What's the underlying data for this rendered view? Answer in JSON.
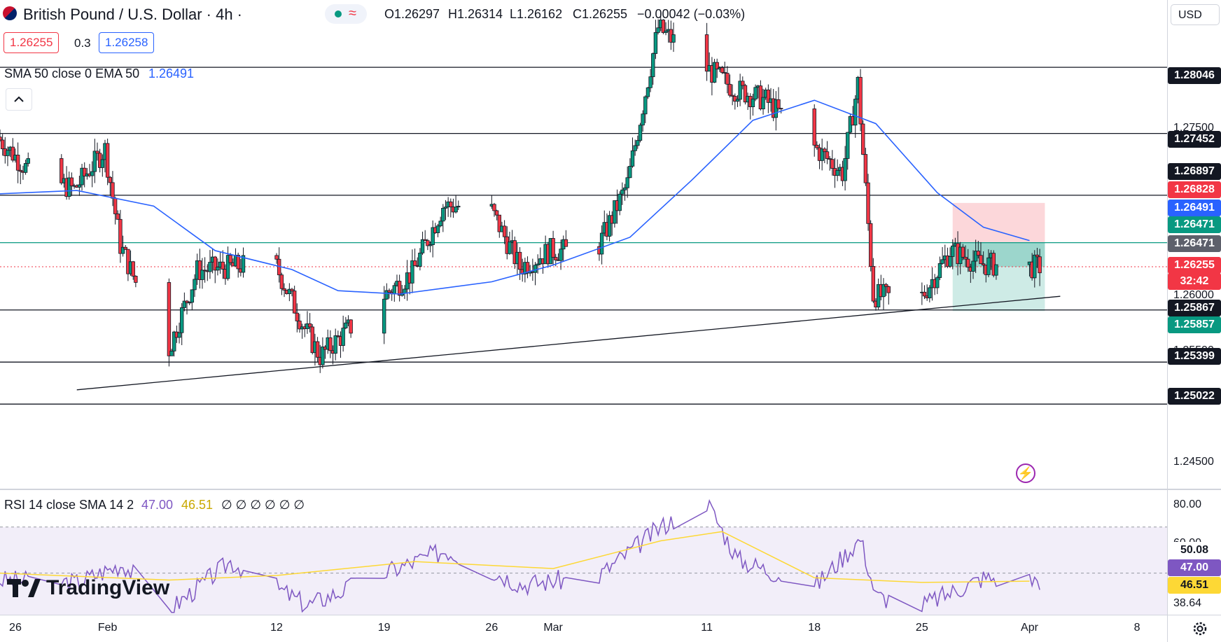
{
  "header": {
    "symbol": "British Pound / U.S. Dollar · 4h ·",
    "ohlc_o": "O1.26297",
    "ohlc_h": "H1.26314",
    "ohlc_l": "L1.26162",
    "ohlc_c": "C1.26255",
    "ohlc_change": "−0.00042 (−0.03%)",
    "sell_price": "1.26255",
    "spread": "0.3",
    "buy_price": "1.26258",
    "ma_label": "SMA 50 close 0 EMA 50",
    "ma_value": "1.26491",
    "currency": "USD",
    "collapse_icon": "chevron-up-icon"
  },
  "rsi": {
    "label": "RSI 14 close SMA 14 2",
    "rsi_value": "47.00",
    "sma_value": "46.51",
    "empty_values": "∅ ∅ ∅ ∅ ∅ ∅"
  },
  "price_axis": {
    "ticks": [
      "1.24500",
      "1.25500",
      "1.26000",
      "1.27500"
    ],
    "tags": [
      {
        "label": "1.28046",
        "bg": "#131722"
      },
      {
        "label": "1.27452",
        "bg": "#131722"
      },
      {
        "label": "1.26897",
        "bg": "#131722"
      },
      {
        "label": "1.26828",
        "bg": "#f23645"
      },
      {
        "label": "1.26491",
        "bg": "#2962ff"
      },
      {
        "label": "1.26471",
        "bg": "#089981"
      },
      {
        "label": "1.26471",
        "bg": "#5d606b"
      },
      {
        "label": "1.26255",
        "bg": "#f23645"
      },
      {
        "label": "32:42",
        "bg": "#f23645"
      },
      {
        "label": "1.25867",
        "bg": "#131722"
      },
      {
        "label": "1.25857",
        "bg": "#089981"
      },
      {
        "label": "1.25399",
        "bg": "#131722"
      },
      {
        "label": "1.25022",
        "bg": "#131722"
      }
    ]
  },
  "rsi_axis": {
    "ticks": [
      "80.00",
      "60.00",
      "38.64"
    ],
    "tags": [
      {
        "label": "50.08",
        "bg": "#ffffff",
        "fg": "#131722"
      },
      {
        "label": "47.00",
        "bg": "#7e57c2",
        "fg": "#ffffff"
      },
      {
        "label": "46.51",
        "bg": "#fdd835",
        "fg": "#131722"
      }
    ]
  },
  "time_axis": {
    "labels": [
      "26",
      "Feb",
      "12",
      "19",
      "26",
      "Mar",
      "11",
      "18",
      "25",
      "Apr",
      "8"
    ]
  },
  "watermark": "TradingView",
  "colors": {
    "up": "#089981",
    "down": "#f23645",
    "ema": "#2962ff",
    "rsi": "#7e57c2",
    "rsi_sma": "#fdd835",
    "candle": "#131722"
  },
  "chart_data": [
    {
      "type": "candlestick",
      "title": "British Pound / U.S. Dollar · 4h",
      "x_range": [
        "2024-01-25",
        "2024-04-10"
      ],
      "y_range": [
        1.2425,
        1.2865
      ],
      "horizontal_levels": [
        1.28046,
        1.27452,
        1.26897,
        1.26471,
        1.25867,
        1.25399,
        1.25022
      ],
      "trendline": {
        "from": {
          "date": "2024-01-30",
          "price": 1.2515
        },
        "to": {
          "date": "2024-04-03",
          "price": 1.2599
        }
      },
      "position_tool": {
        "entry": 1.26471,
        "stop": 1.26828,
        "target": 1.25857,
        "from": "2024-03-27",
        "to": "2024-04-02"
      },
      "current_price": 1.26255,
      "countdown": "32:42",
      "ema50": [
        {
          "date": "2024-01-25",
          "value": 1.2691
        },
        {
          "date": "2024-01-30",
          "value": 1.2694
        },
        {
          "date": "2024-02-04",
          "value": 1.268
        },
        {
          "date": "2024-02-08",
          "value": 1.264
        },
        {
          "date": "2024-02-13",
          "value": 1.2623
        },
        {
          "date": "2024-02-16",
          "value": 1.2604
        },
        {
          "date": "2024-02-20",
          "value": 1.2601
        },
        {
          "date": "2024-02-26",
          "value": 1.2612
        },
        {
          "date": "2024-03-01",
          "value": 1.2627
        },
        {
          "date": "2024-03-06",
          "value": 1.2652
        },
        {
          "date": "2024-03-10",
          "value": 1.2703
        },
        {
          "date": "2024-03-14",
          "value": 1.2757
        },
        {
          "date": "2024-03-18",
          "value": 1.2775
        },
        {
          "date": "2024-03-22",
          "value": 1.2754
        },
        {
          "date": "2024-03-26",
          "value": 1.2692
        },
        {
          "date": "2024-03-29",
          "value": 1.2661
        },
        {
          "date": "2024-04-01",
          "value": 1.2649
        }
      ],
      "closes": [
        {
          "date": "2024-01-25",
          "value": 1.2742
        },
        {
          "date": "2024-01-27",
          "value": 1.2712
        },
        {
          "date": "2024-01-30",
          "value": 1.2695
        },
        {
          "date": "2024-02-01",
          "value": 1.2731
        },
        {
          "date": "2024-02-02",
          "value": 1.2645
        },
        {
          "date": "2024-02-05",
          "value": 1.2545
        },
        {
          "date": "2024-02-07",
          "value": 1.2622
        },
        {
          "date": "2024-02-09",
          "value": 1.2625
        },
        {
          "date": "2024-02-12",
          "value": 1.263
        },
        {
          "date": "2024-02-14",
          "value": 1.257
        },
        {
          "date": "2024-02-15",
          "value": 1.2545
        },
        {
          "date": "2024-02-19",
          "value": 1.2598
        },
        {
          "date": "2024-02-21",
          "value": 1.262
        },
        {
          "date": "2024-02-23",
          "value": 1.268
        },
        {
          "date": "2024-02-26",
          "value": 1.268
        },
        {
          "date": "2024-02-28",
          "value": 1.2625
        },
        {
          "date": "2024-03-01",
          "value": 1.264
        },
        {
          "date": "2024-03-04",
          "value": 1.264
        },
        {
          "date": "2024-03-06",
          "value": 1.27
        },
        {
          "date": "2024-03-08",
          "value": 1.284
        },
        {
          "date": "2024-03-11",
          "value": 1.2805
        },
        {
          "date": "2024-03-13",
          "value": 1.2785
        },
        {
          "date": "2024-03-15",
          "value": 1.2775
        },
        {
          "date": "2024-03-18",
          "value": 1.2735
        },
        {
          "date": "2024-03-20",
          "value": 1.271
        },
        {
          "date": "2024-03-21",
          "value": 1.279
        },
        {
          "date": "2024-03-22",
          "value": 1.26
        },
        {
          "date": "2024-03-25",
          "value": 1.2595
        },
        {
          "date": "2024-03-27",
          "value": 1.264
        },
        {
          "date": "2024-03-29",
          "value": 1.2628
        },
        {
          "date": "2024-04-01",
          "value": 1.26255
        }
      ],
      "rsi_y_range": [
        32,
        86
      ],
      "rsi_levels": [
        70,
        50,
        30
      ],
      "rsi14": [
        {
          "date": "2024-01-25",
          "value": 47
        },
        {
          "date": "2024-01-30",
          "value": 46
        },
        {
          "date": "2024-02-02",
          "value": 54
        },
        {
          "date": "2024-02-05",
          "value": 34
        },
        {
          "date": "2024-02-09",
          "value": 55
        },
        {
          "date": "2024-02-14",
          "value": 36
        },
        {
          "date": "2024-02-19",
          "value": 50
        },
        {
          "date": "2024-02-23",
          "value": 60
        },
        {
          "date": "2024-02-28",
          "value": 45
        },
        {
          "date": "2024-03-04",
          "value": 49
        },
        {
          "date": "2024-03-08",
          "value": 70
        },
        {
          "date": "2024-03-11",
          "value": 81
        },
        {
          "date": "2024-03-13",
          "value": 56
        },
        {
          "date": "2024-03-18",
          "value": 44
        },
        {
          "date": "2024-03-21",
          "value": 65
        },
        {
          "date": "2024-03-22",
          "value": 40
        },
        {
          "date": "2024-03-25",
          "value": 36
        },
        {
          "date": "2024-03-29",
          "value": 48
        },
        {
          "date": "2024-04-01",
          "value": 47
        }
      ],
      "rsi_sma14": [
        {
          "date": "2024-01-25",
          "value": 50
        },
        {
          "date": "2024-02-05",
          "value": 47
        },
        {
          "date": "2024-02-12",
          "value": 49
        },
        {
          "date": "2024-02-21",
          "value": 55
        },
        {
          "date": "2024-03-01",
          "value": 52
        },
        {
          "date": "2024-03-08",
          "value": 64
        },
        {
          "date": "2024-03-12",
          "value": 68
        },
        {
          "date": "2024-03-18",
          "value": 48
        },
        {
          "date": "2024-03-25",
          "value": 46
        },
        {
          "date": "2024-04-01",
          "value": 46.51
        }
      ]
    }
  ]
}
